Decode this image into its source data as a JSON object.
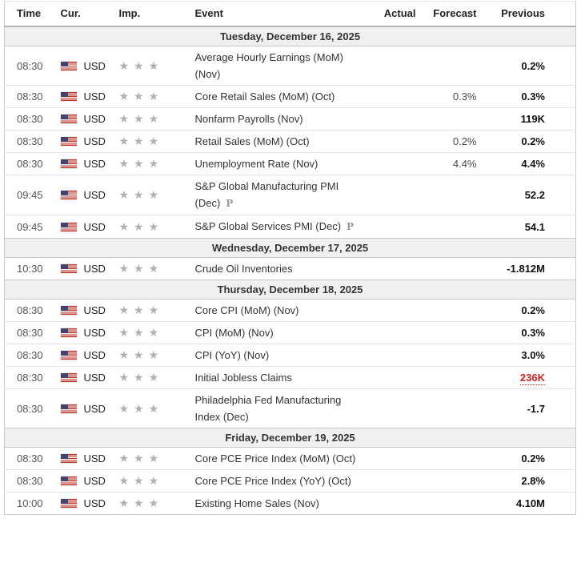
{
  "table": {
    "headers": {
      "time": "Time",
      "cur": "Cur.",
      "imp": "Imp.",
      "event": "Event",
      "actual": "Actual",
      "forecast": "Forecast",
      "previous": "Previous"
    },
    "importance_max": 3,
    "star_icon": "★",
    "preliminary_label": "P",
    "colors": {
      "star_gray": "#b0b0b0",
      "date_row_bg": "#f0f0f0",
      "negative_red": "#cc2222",
      "flag_red": "#c0392b",
      "flag_blue": "#44436f"
    },
    "sections": [
      {
        "date": "Tuesday, December 16, 2025",
        "rows": [
          {
            "time": "08:30",
            "currency": "USD",
            "importance": 3,
            "event": "Average Hourly Earnings (MoM) (Nov)",
            "preliminary": false,
            "actual": "",
            "forecast": "",
            "previous": "0.2%",
            "previous_highlight": false
          },
          {
            "time": "08:30",
            "currency": "USD",
            "importance": 3,
            "event": "Core Retail Sales (MoM) (Oct)",
            "preliminary": false,
            "actual": "",
            "forecast": "0.3%",
            "previous": "0.3%",
            "previous_highlight": false
          },
          {
            "time": "08:30",
            "currency": "USD",
            "importance": 3,
            "event": "Nonfarm Payrolls (Nov)",
            "preliminary": false,
            "actual": "",
            "forecast": "",
            "previous": "119K",
            "previous_highlight": false
          },
          {
            "time": "08:30",
            "currency": "USD",
            "importance": 3,
            "event": "Retail Sales (MoM) (Oct)",
            "preliminary": false,
            "actual": "",
            "forecast": "0.2%",
            "previous": "0.2%",
            "previous_highlight": false
          },
          {
            "time": "08:30",
            "currency": "USD",
            "importance": 3,
            "event": "Unemployment Rate (Nov)",
            "preliminary": false,
            "actual": "",
            "forecast": "4.4%",
            "previous": "4.4%",
            "previous_highlight": false
          },
          {
            "time": "09:45",
            "currency": "USD",
            "importance": 3,
            "event": "S&P Global Manufacturing PMI (Dec)",
            "preliminary": true,
            "actual": "",
            "forecast": "",
            "previous": "52.2",
            "previous_highlight": false
          },
          {
            "time": "09:45",
            "currency": "USD",
            "importance": 3,
            "event": "S&P Global Services PMI (Dec)",
            "preliminary": true,
            "actual": "",
            "forecast": "",
            "previous": "54.1",
            "previous_highlight": false
          }
        ]
      },
      {
        "date": "Wednesday, December 17, 2025",
        "rows": [
          {
            "time": "10:30",
            "currency": "USD",
            "importance": 3,
            "event": "Crude Oil Inventories",
            "preliminary": false,
            "actual": "",
            "forecast": "",
            "previous": "-1.812M",
            "previous_highlight": false
          }
        ]
      },
      {
        "date": "Thursday, December 18, 2025",
        "rows": [
          {
            "time": "08:30",
            "currency": "USD",
            "importance": 3,
            "event": "Core CPI (MoM) (Nov)",
            "preliminary": false,
            "actual": "",
            "forecast": "",
            "previous": "0.2%",
            "previous_highlight": false
          },
          {
            "time": "08:30",
            "currency": "USD",
            "importance": 3,
            "event": "CPI (MoM) (Nov)",
            "preliminary": false,
            "actual": "",
            "forecast": "",
            "previous": "0.3%",
            "previous_highlight": false
          },
          {
            "time": "08:30",
            "currency": "USD",
            "importance": 3,
            "event": "CPI (YoY) (Nov)",
            "preliminary": false,
            "actual": "",
            "forecast": "",
            "previous": "3.0%",
            "previous_highlight": false
          },
          {
            "time": "08:30",
            "currency": "USD",
            "importance": 3,
            "event": "Initial Jobless Claims",
            "preliminary": false,
            "actual": "",
            "forecast": "",
            "previous": "236K",
            "previous_highlight": true
          },
          {
            "time": "08:30",
            "currency": "USD",
            "importance": 3,
            "event": "Philadelphia Fed Manufacturing Index (Dec)",
            "preliminary": false,
            "actual": "",
            "forecast": "",
            "previous": "-1.7",
            "previous_highlight": false
          }
        ]
      },
      {
        "date": "Friday, December 19, 2025",
        "rows": [
          {
            "time": "08:30",
            "currency": "USD",
            "importance": 3,
            "event": "Core PCE Price Index (MoM) (Oct)",
            "preliminary": false,
            "actual": "",
            "forecast": "",
            "previous": "0.2%",
            "previous_highlight": false
          },
          {
            "time": "08:30",
            "currency": "USD",
            "importance": 3,
            "event": "Core PCE Price Index (YoY) (Oct)",
            "preliminary": false,
            "actual": "",
            "forecast": "",
            "previous": "2.8%",
            "previous_highlight": false
          },
          {
            "time": "10:00",
            "currency": "USD",
            "importance": 3,
            "event": "Existing Home Sales (Nov)",
            "preliminary": false,
            "actual": "",
            "forecast": "",
            "previous": "4.10M",
            "previous_highlight": false
          }
        ]
      }
    ]
  }
}
